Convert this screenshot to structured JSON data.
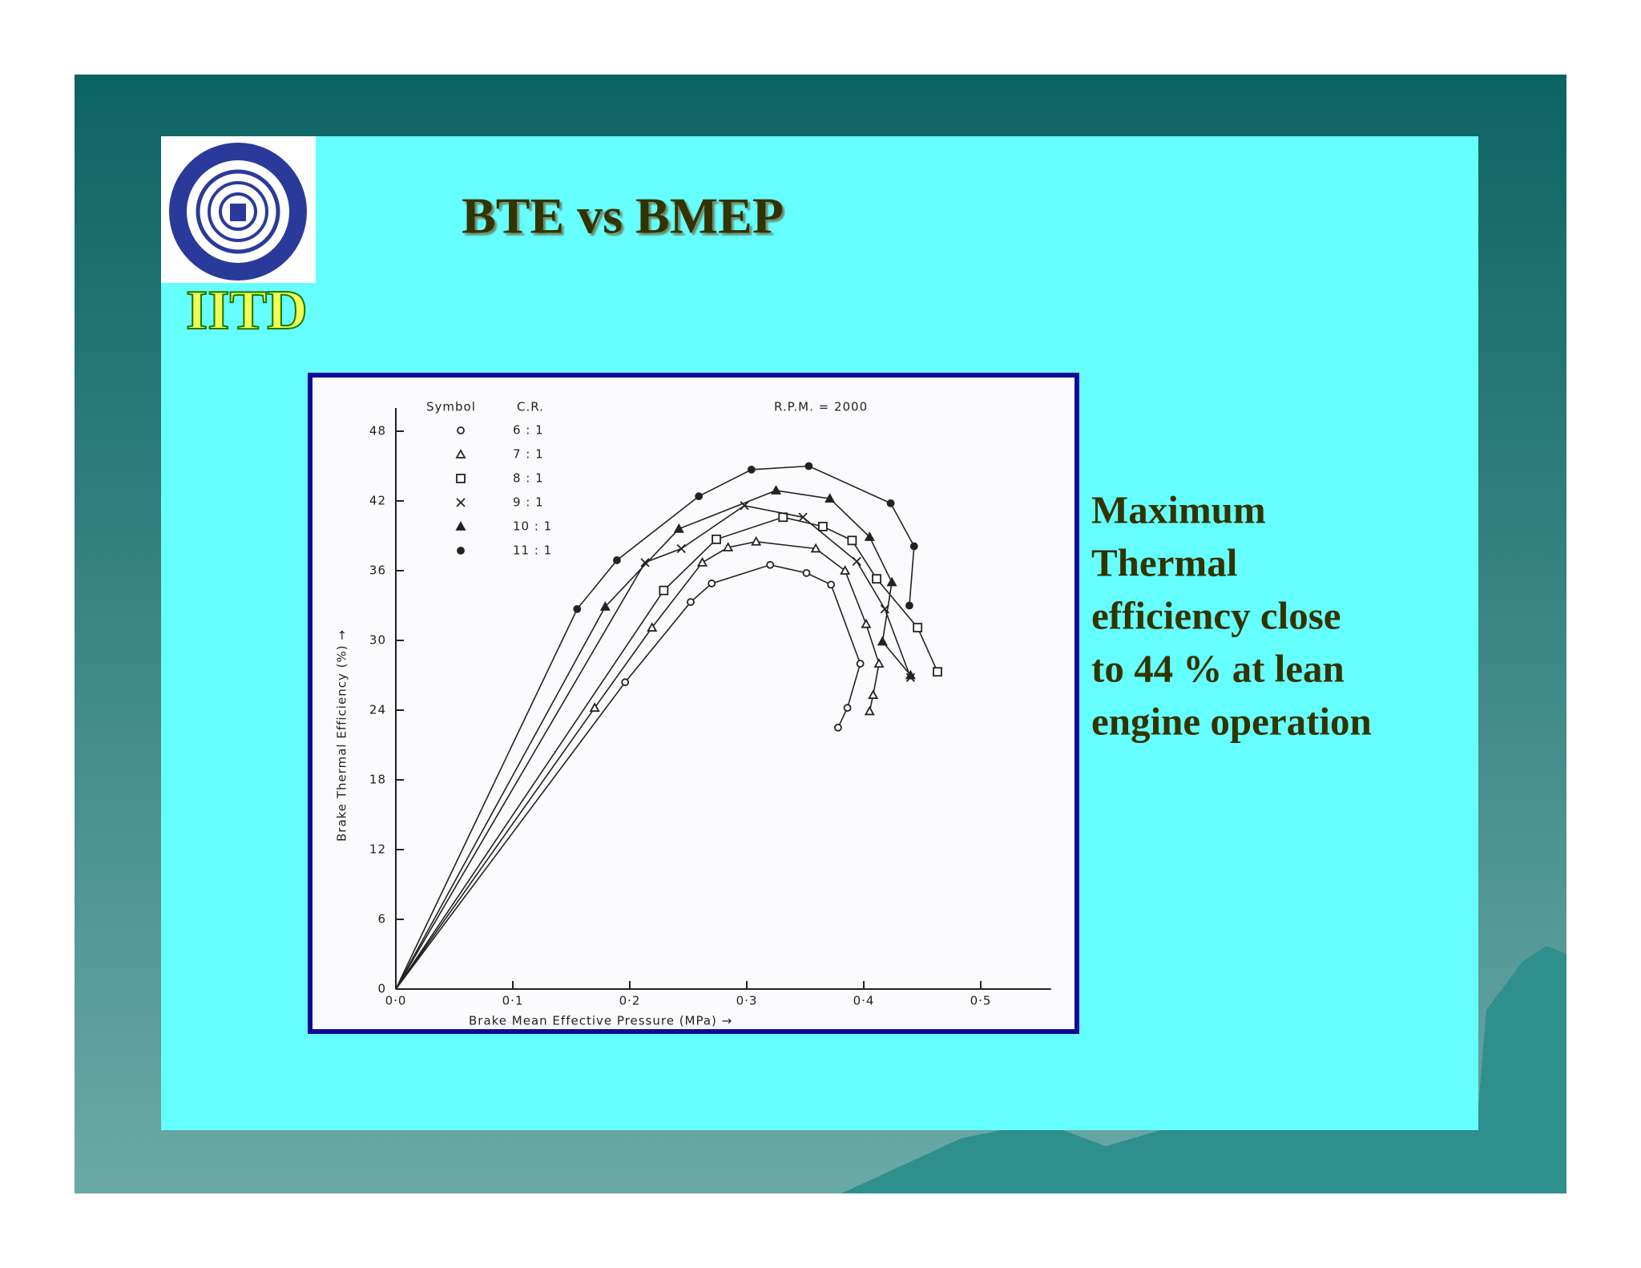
{
  "slide": {
    "logo_text": "IITD",
    "title": "BTE vs BMEP",
    "body_lines": [
      "Maximum",
      "Thermal",
      "efficiency close",
      "to  44 % at lean",
      "engine operation"
    ]
  },
  "chart_data": {
    "type": "line",
    "annotation": "R.P.M. = 2000",
    "legend_header": [
      "Symbol",
      "C.R."
    ],
    "x_label": "Brake   Mean   Effective   Pressure  (MPa) →",
    "y_label": "Brake   Thermal   Efficiency (%) →",
    "xlim": [
      0,
      0.56
    ],
    "ylim": [
      0,
      50
    ],
    "xticks": [
      {
        "value": 0,
        "label": "0·0"
      },
      {
        "value": 0.1,
        "label": "0·1"
      },
      {
        "value": 0.2,
        "label": "0·2"
      },
      {
        "value": 0.3,
        "label": "0·3"
      },
      {
        "value": 0.4,
        "label": "0·4"
      },
      {
        "value": 0.5,
        "label": "0·5"
      }
    ],
    "yticks": [
      0,
      6,
      12,
      18,
      24,
      30,
      36,
      42,
      48
    ],
    "color": "#222222",
    "series": [
      {
        "name": "6 : 1",
        "marker": "open-circle",
        "x": [
          0,
          0.196,
          0.252,
          0.27,
          0.32,
          0.351,
          0.372,
          0.397,
          0.386,
          0.378
        ],
        "values": [
          0,
          26.4,
          33.3,
          34.9,
          36.5,
          35.8,
          34.8,
          28.0,
          24.2,
          22.5
        ]
      },
      {
        "name": "7 : 1",
        "marker": "open-triangle",
        "x": [
          0,
          0.17,
          0.219,
          0.262,
          0.284,
          0.308,
          0.359,
          0.384,
          0.402,
          0.413,
          0.408,
          0.405
        ],
        "values": [
          0,
          24.2,
          31.1,
          36.7,
          38.0,
          38.5,
          37.9,
          36.0,
          31.4,
          28.0,
          25.3,
          23.9
        ]
      },
      {
        "name": "8 : 1",
        "marker": "open-square",
        "x": [
          0,
          0.229,
          0.274,
          0.331,
          0.365,
          0.39,
          0.411,
          0.446,
          0.463
        ],
        "values": [
          0,
          34.3,
          38.7,
          40.6,
          39.8,
          38.6,
          35.3,
          31.1,
          27.3
        ]
      },
      {
        "name": "9 : 1",
        "marker": "cross",
        "x": [
          0,
          0.213,
          0.244,
          0.298,
          0.348,
          0.394,
          0.418,
          0.44
        ],
        "values": [
          0,
          36.7,
          37.9,
          41.6,
          40.6,
          36.8,
          32.7,
          26.8
        ]
      },
      {
        "name": "10 : 1",
        "marker": "filled-triangle",
        "x": [
          0,
          0.179,
          0.242,
          0.325,
          0.371,
          0.405,
          0.424,
          0.416,
          0.44
        ],
        "values": [
          0,
          32.9,
          39.6,
          42.9,
          42.2,
          38.9,
          35.0,
          29.9,
          27.0
        ]
      },
      {
        "name": "11 : 1",
        "marker": "filled-circle",
        "x": [
          0,
          0.155,
          0.189,
          0.259,
          0.304,
          0.353,
          0.423,
          0.443,
          0.439
        ],
        "values": [
          0,
          32.7,
          36.9,
          42.4,
          44.7,
          45.0,
          41.8,
          38.1,
          33.0
        ]
      }
    ]
  }
}
